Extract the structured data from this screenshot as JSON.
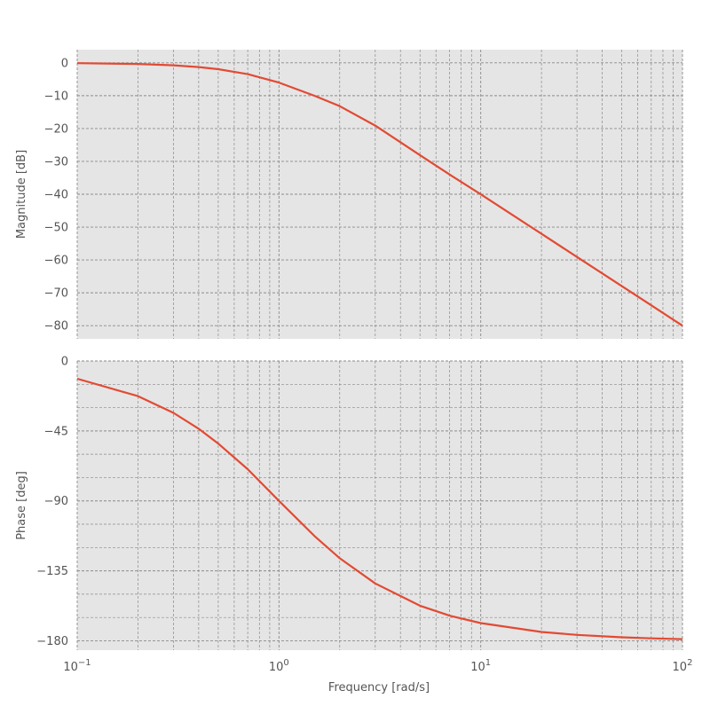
{
  "chart_data": [
    {
      "type": "line",
      "title": "",
      "xlabel": "",
      "ylabel": "Magnitude [dB]",
      "xscale": "log",
      "xlim": [
        0.1,
        100
      ],
      "ylim": [
        -84,
        4
      ],
      "yticks": [
        0,
        -10,
        -20,
        -30,
        -40,
        -50,
        -60,
        -70,
        -80
      ],
      "ytick_labels": [
        "0",
        "−10",
        "−20",
        "−30",
        "−40",
        "−50",
        "−60",
        "−70",
        "−80"
      ],
      "grid": true,
      "series": [
        {
          "color": "#e24a33",
          "x": [
            0.1,
            0.2,
            0.3,
            0.4,
            0.5,
            0.7,
            1,
            1.5,
            2,
            3,
            5,
            7,
            10,
            20,
            30,
            50,
            70,
            100
          ],
          "y": [
            -0.09,
            -0.34,
            -0.75,
            -1.29,
            -1.94,
            -3.46,
            -6.02,
            -10.03,
            -13.2,
            -19.1,
            -28.1,
            -33.98,
            -40.04,
            -52.05,
            -59.09,
            -67.96,
            -73.8,
            -80.0
          ]
        }
      ]
    },
    {
      "type": "line",
      "title": "",
      "xlabel": "Frequency [rad/s]",
      "ylabel": "Phase [deg]",
      "xscale": "log",
      "xlim": [
        0.1,
        100
      ],
      "ylim": [
        -186,
        0
      ],
      "yticks": [
        0,
        -45,
        -90,
        -135,
        -180
      ],
      "ytick_labels": [
        "0",
        "−45",
        "−90",
        "−135",
        "−180"
      ],
      "xtick_labels": [
        {
          "base": "10",
          "exp": "−1"
        },
        {
          "base": "10",
          "exp": "0"
        },
        {
          "base": "10",
          "exp": "1"
        },
        {
          "base": "10",
          "exp": "2"
        }
      ],
      "grid": true,
      "series": [
        {
          "color": "#e24a33",
          "x": [
            0.1,
            0.2,
            0.3,
            0.4,
            0.5,
            0.7,
            1,
            1.5,
            2,
            3,
            5,
            7,
            10,
            20,
            30,
            50,
            70,
            100
          ],
          "y": [
            -11.4,
            -22.6,
            -33.4,
            -43.6,
            -53.1,
            -69.6,
            -90.0,
            -112.6,
            -126.9,
            -143.1,
            -157.4,
            -163.8,
            -168.6,
            -174.3,
            -176.2,
            -177.7,
            -178.4,
            -178.9
          ]
        }
      ]
    }
  ]
}
